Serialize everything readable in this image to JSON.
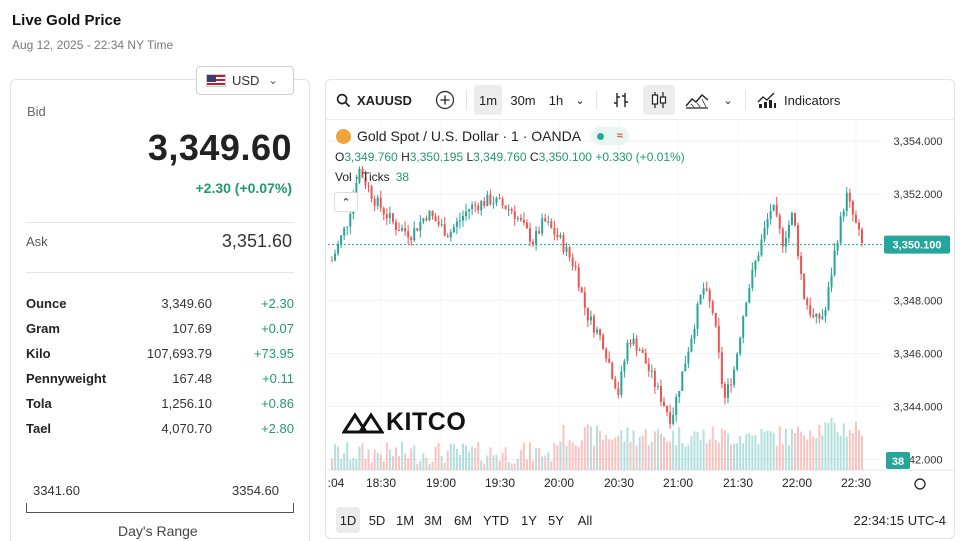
{
  "header": {
    "title": "Live Gold Price",
    "subtitle": "Aug 12, 2025 - 22:34 NY Time"
  },
  "currency": {
    "selected": "USD",
    "flag_icon": "us-flag-icon"
  },
  "quote": {
    "bid_label": "Bid",
    "bid": "3,349.60",
    "change": "+2.30 (+0.07%)",
    "ask_label": "Ask",
    "ask": "3,351.60"
  },
  "units": [
    {
      "unit": "Ounce",
      "price": "3,349.60",
      "change": "+2.30"
    },
    {
      "unit": "Gram",
      "price": "107.69",
      "change": "+0.07"
    },
    {
      "unit": "Kilo",
      "price": "107,693.79",
      "change": "+73.95"
    },
    {
      "unit": "Pennyweight",
      "price": "167.48",
      "change": "+0.11"
    },
    {
      "unit": "Tola",
      "price": "1,256.10",
      "change": "+0.86"
    },
    {
      "unit": "Tael",
      "price": "4,070.70",
      "change": "+2.80"
    }
  ],
  "day_range": {
    "low": "3341.60",
    "high": "3354.60",
    "label": "Day's Range"
  },
  "toolbar": {
    "symbol": "XAUUSD",
    "intervals": [
      "1m",
      "30m",
      "1h"
    ],
    "active_interval": "1m",
    "indicators_label": "Indicators"
  },
  "legend": {
    "title": "Gold Spot / U.S. Dollar · 1 · OANDA",
    "o_label": "O",
    "o": "3,349.760",
    "h_label": "H",
    "h": "3,350.195",
    "l_label": "L",
    "l": "3,349.760",
    "c_label": "C",
    "c": "3,350.100",
    "change": "+0.330 (+0.01%)",
    "vol_label": "Vol · Ticks",
    "vol_value": "38"
  },
  "chart_watermark": "KITCO",
  "ranges": [
    "1D",
    "5D",
    "1M",
    "3M",
    "6M",
    "YTD",
    "1Y",
    "5Y",
    "All"
  ],
  "active_range": "1D",
  "clock": "22:34:15 UTC-4",
  "colors": {
    "up": "#26a69a",
    "down": "#ef5350",
    "accent": "#1f9a6c",
    "last_price_tag": "#26a69a"
  },
  "chart_data": {
    "type": "candlestick",
    "x_ticks": [
      ":04",
      "18:30",
      "19:00",
      "19:30",
      "20:00",
      "20:30",
      "21:00",
      "21:30",
      "22:00",
      "22:30"
    ],
    "y_ticks": [
      "3,354.000",
      "3,352.000",
      "3,350.000",
      "3,348.000",
      "3,346.000",
      "3,344.000",
      "3,342.000"
    ],
    "ylim": [
      3341.6,
      3354.8
    ],
    "last_price": 3350.1,
    "last_price_label": "3,350.100",
    "volume_label": "38",
    "close_path": [
      [
        0,
        3349.5
      ],
      [
        0.03,
        3351.0
      ],
      [
        0.05,
        3353.0
      ],
      [
        0.08,
        3351.8
      ],
      [
        0.12,
        3350.8
      ],
      [
        0.15,
        3350.5
      ],
      [
        0.18,
        3351.3
      ],
      [
        0.22,
        3350.5
      ],
      [
        0.26,
        3351.5
      ],
      [
        0.3,
        3351.8
      ],
      [
        0.34,
        3351.4
      ],
      [
        0.38,
        3350.2
      ],
      [
        0.4,
        3351.0
      ],
      [
        0.43,
        3350.3
      ],
      [
        0.46,
        3349.2
      ],
      [
        0.48,
        3347.5
      ],
      [
        0.51,
        3346.5
      ],
      [
        0.54,
        3344.5
      ],
      [
        0.56,
        3346.6
      ],
      [
        0.58,
        3346.2
      ],
      [
        0.61,
        3344.8
      ],
      [
        0.64,
        3343.5
      ],
      [
        0.67,
        3346.0
      ],
      [
        0.7,
        3348.5
      ],
      [
        0.72,
        3347.5
      ],
      [
        0.74,
        3344.2
      ],
      [
        0.76,
        3345.5
      ],
      [
        0.78,
        3348.0
      ],
      [
        0.8,
        3349.5
      ],
      [
        0.83,
        3351.6
      ],
      [
        0.85,
        3350.2
      ],
      [
        0.87,
        3351.3
      ],
      [
        0.89,
        3348.2
      ],
      [
        0.91,
        3347.2
      ],
      [
        0.93,
        3347.5
      ],
      [
        0.95,
        3350.0
      ],
      [
        0.97,
        3352.0
      ],
      [
        1.0,
        3350.1
      ]
    ]
  }
}
